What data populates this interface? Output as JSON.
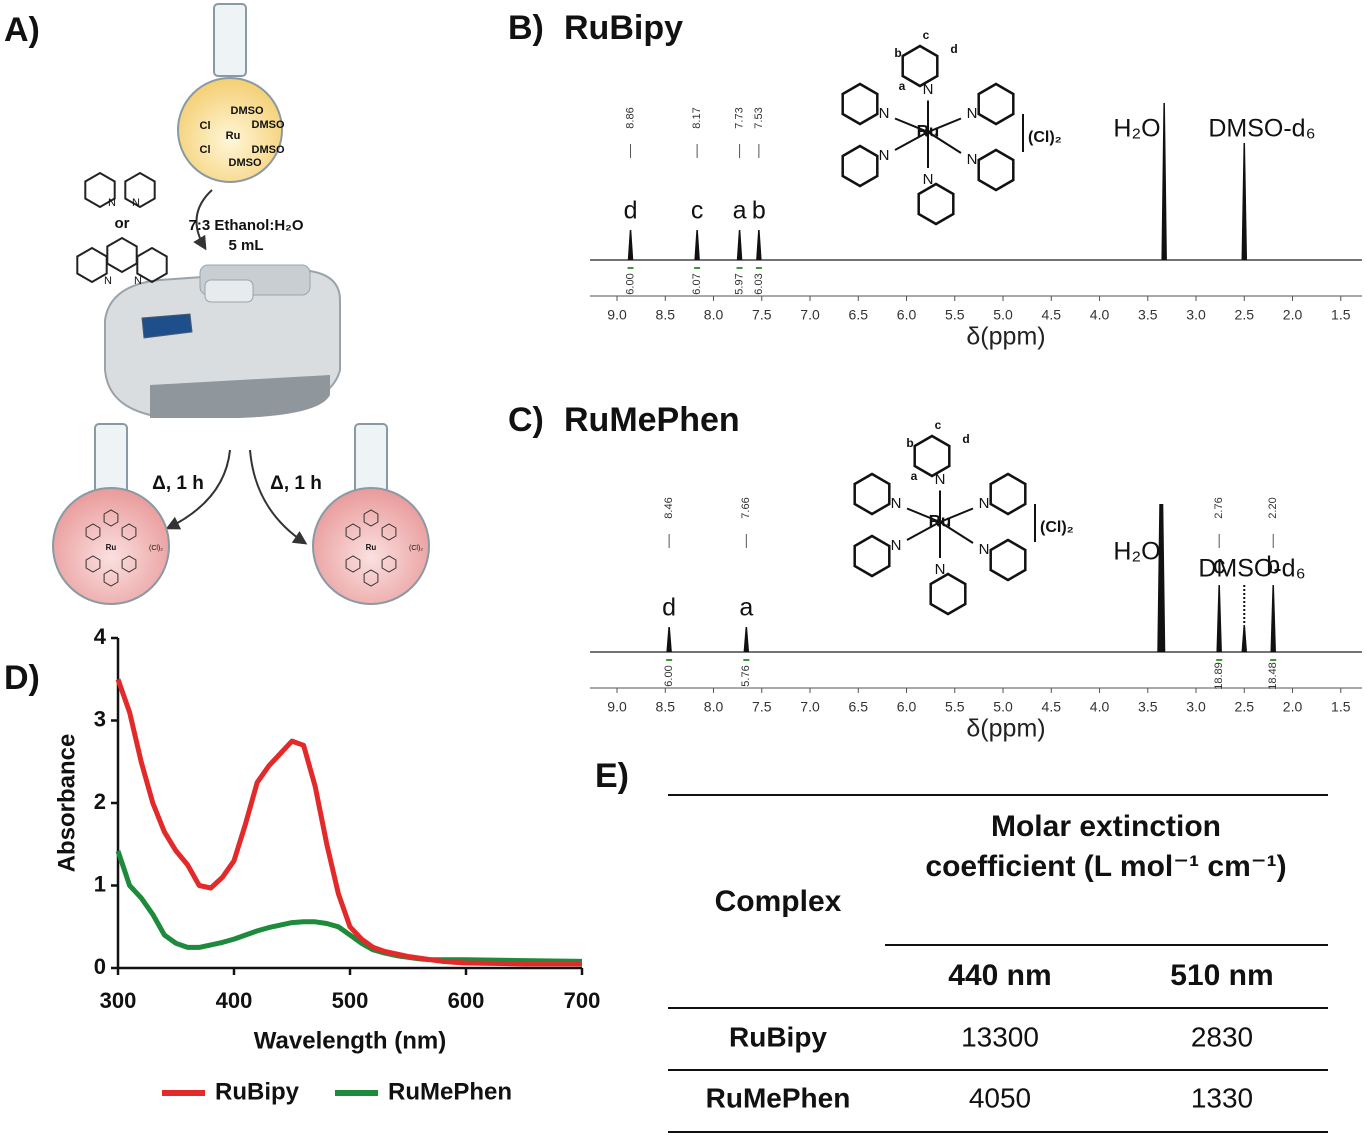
{
  "panel_a": {
    "label": "A)",
    "precursor": [
      "DMSO",
      "Cl",
      "Ru",
      "DMSO",
      "Cl",
      "DMSO",
      "DMSO"
    ],
    "donor": "N",
    "or": "or",
    "solvent": "7:3 Ethanol:H₂O",
    "volume": "5 mL",
    "conditions": [
      "Δ, 1 h",
      "Δ, 1 h"
    ],
    "counterion": "(Cl)₂",
    "metal": "Ru"
  },
  "nmr_b": {
    "label": "B)",
    "title": "RuBipy",
    "xlabel": "δ(ppm)",
    "xlim": [
      9.28,
      1.28
    ],
    "xticks": [
      {
        "value": 9,
        "label": "9.0"
      },
      8.5,
      {
        "value": 8,
        "label": "8.0"
      },
      7.5,
      {
        "value": 7,
        "label": "7.0"
      },
      6.5,
      {
        "value": 6,
        "label": "6.0"
      },
      5.5,
      {
        "value": 5,
        "label": "5.0"
      },
      4.5,
      {
        "value": 4,
        "label": "4.0"
      },
      3.5,
      {
        "value": 3,
        "label": "3.0"
      },
      2.5,
      {
        "value": 2,
        "label": "2.0"
      },
      1.5
    ],
    "peaks": [
      {
        "ppm": 8.86,
        "assignment": "d",
        "integral": "6.00"
      },
      {
        "ppm": 8.17,
        "assignment": "c",
        "integral": "6.07"
      },
      {
        "ppm": 7.73,
        "assignment": "a",
        "integral": "5.97"
      },
      {
        "ppm": 7.53,
        "assignment": "b",
        "integral": "6.03"
      }
    ],
    "solvents": [
      {
        "name": "H₂O",
        "ppm": 3.33
      },
      {
        "name": "DMSO-d₆",
        "ppm": 2.5
      }
    ],
    "structure": {
      "metal": "Ru",
      "donor": "N",
      "counterion": "(Cl)₂",
      "sites": [
        "a",
        "b",
        "c",
        "d"
      ]
    }
  },
  "nmr_c": {
    "label": "C)",
    "title": "RuMePhen",
    "xlabel": "δ(ppm)",
    "xlim": [
      9.28,
      1.28
    ],
    "xticks": [
      {
        "value": 9,
        "label": "9.0"
      },
      8.5,
      {
        "value": 8,
        "label": "8.0"
      },
      7.5,
      {
        "value": 7,
        "label": "7.0"
      },
      6.5,
      {
        "value": 6,
        "label": "6.0"
      },
      5.5,
      {
        "value": 5,
        "label": "5.0"
      },
      4.5,
      {
        "value": 4,
        "label": "4.0"
      },
      3.5,
      {
        "value": 3,
        "label": "3.0"
      },
      2.5,
      {
        "value": 2,
        "label": "2.0"
      },
      1.5
    ],
    "peaks": [
      {
        "ppm": 8.46,
        "assignment": "d",
        "integral": "6.00"
      },
      {
        "ppm": 7.66,
        "assignment": "a",
        "integral": "5.76"
      },
      {
        "ppm": 2.76,
        "assignment": "c",
        "integral": "18.89"
      },
      {
        "ppm": {
          "value": 2.2,
          "label": "2.20"
        },
        "assignment": "b",
        "integral": "18.48"
      }
    ],
    "solvents": [
      {
        "name": "H₂O",
        "ppm": 3.36
      },
      {
        "name": "DMSO-d₆",
        "ppm": 2.5
      }
    ],
    "structure": {
      "metal": "Ru",
      "donor": "N",
      "counterion": "(Cl)₂",
      "sites": [
        "a",
        "b",
        "c",
        "d"
      ]
    }
  },
  "chart_data": {
    "type": "line",
    "panel_label": "D)",
    "xlabel": "Wavelength (nm)",
    "ylabel": "Absorbance",
    "x": [
      300,
      310,
      320,
      330,
      340,
      350,
      360,
      370,
      380,
      390,
      400,
      410,
      420,
      430,
      440,
      450,
      460,
      470,
      480,
      490,
      500,
      510,
      520,
      530,
      540,
      550,
      560,
      570,
      580,
      590,
      600,
      650,
      700
    ],
    "series": [
      {
        "name": "RuBipy",
        "color": "#e32a2a",
        "values": [
          3.5,
          3.1,
          2.5,
          2.0,
          1.65,
          1.42,
          1.25,
          1.0,
          0.97,
          1.1,
          1.3,
          1.75,
          2.25,
          2.45,
          2.6,
          2.75,
          2.7,
          2.2,
          1.5,
          0.9,
          0.5,
          0.35,
          0.25,
          0.2,
          0.17,
          0.14,
          0.12,
          0.1,
          0.08,
          0.07,
          0.06,
          0.05,
          0.05
        ]
      },
      {
        "name": "RuMePhen",
        "color": "#1e8a3c",
        "values": [
          1.42,
          1.0,
          0.85,
          0.65,
          0.4,
          0.3,
          0.25,
          0.25,
          0.28,
          0.31,
          0.35,
          0.4,
          0.45,
          0.49,
          0.52,
          0.55,
          0.56,
          0.56,
          0.54,
          0.5,
          0.4,
          0.3,
          0.22,
          0.18,
          0.15,
          0.13,
          0.11,
          0.1,
          0.1,
          0.1,
          0.1,
          0.09,
          0.08
        ]
      }
    ],
    "xlim": [
      300,
      700
    ],
    "xticks": [
      300,
      400,
      500,
      600,
      700
    ],
    "ylim": [
      0,
      4
    ],
    "yticks": [
      0,
      1,
      2,
      3,
      4
    ],
    "legend": "bottom"
  },
  "table": {
    "label": "E)",
    "row_header": "Complex",
    "group_header": [
      "Molar extinction",
      "coefficient (L mol⁻¹ cm⁻¹)"
    ],
    "columns": [
      "440 nm",
      "510 nm"
    ],
    "rows": [
      [
        "RuBipy",
        13300,
        2830
      ],
      [
        "RuMePhen",
        4050,
        1330
      ]
    ]
  }
}
